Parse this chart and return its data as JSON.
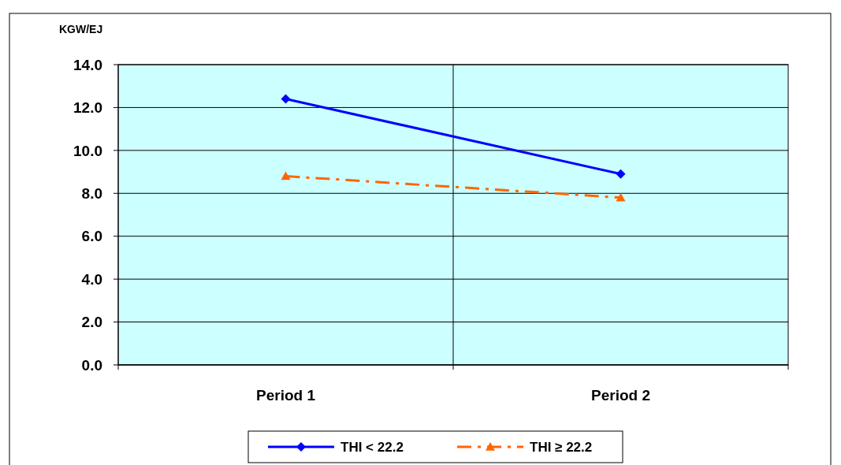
{
  "chart_data": {
    "type": "line",
    "ylabel": "KGW/EJ",
    "categories": [
      "Period 1",
      "Period 2"
    ],
    "series": [
      {
        "name": "THI < 22.2",
        "color": "#0000ff",
        "values": [
          12.4,
          8.9
        ],
        "marker": "diamond",
        "line_style": "solid"
      },
      {
        "name": "THI ≥ 22.2",
        "color": "#ff6600",
        "values": [
          8.8,
          7.8
        ],
        "marker": "triangle",
        "line_style": "dashed"
      }
    ],
    "ylim": [
      0,
      14
    ],
    "yticks": [
      {
        "value": 0,
        "label": "0.0"
      },
      {
        "value": 2,
        "label": "2.0"
      },
      {
        "value": 4,
        "label": "4.0"
      },
      {
        "value": 6,
        "label": "6.0"
      },
      {
        "value": 8,
        "label": "8.0"
      },
      {
        "value": 10,
        "label": "10.0"
      },
      {
        "value": 12,
        "label": "12.0"
      },
      {
        "value": 14,
        "label": "14.0"
      }
    ],
    "grid": true,
    "legend": "bottom"
  }
}
